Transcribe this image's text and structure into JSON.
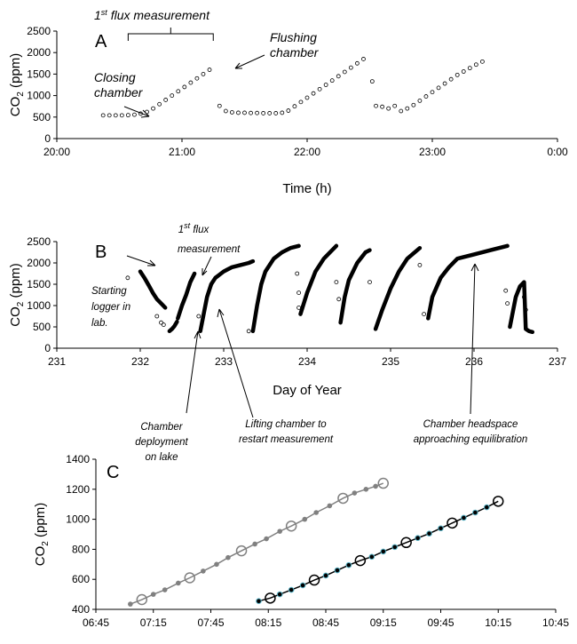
{
  "chart_data": [
    {
      "panel": "A",
      "type": "scatter",
      "xlabel": "Time (h)",
      "ylabel": "CO2 (ppm)",
      "xticks": [
        "20:00",
        "21:00",
        "22:00",
        "23:00",
        "0:00"
      ],
      "xlim": [
        20.0,
        24.0
      ],
      "ylim": [
        0,
        2500
      ],
      "yticks": [
        0,
        500,
        1000,
        1500,
        2000,
        2500
      ],
      "annotations": [
        {
          "text": "1st flux measurement",
          "sup": "st"
        },
        {
          "text": "Closing chamber"
        },
        {
          "text": "Flushing chamber"
        }
      ],
      "series": [
        {
          "x": [
            20.37,
            20.42,
            20.47,
            20.52,
            20.57,
            20.62,
            20.67,
            20.72,
            20.77,
            20.82,
            20.87,
            20.92,
            20.97,
            21.02,
            21.07,
            21.12,
            21.17,
            21.22,
            21.3,
            21.35,
            21.4,
            21.45,
            21.5,
            21.55,
            21.6,
            21.65,
            21.7,
            21.75,
            21.8,
            21.85,
            21.9,
            21.95,
            22.0,
            22.05,
            22.1,
            22.15,
            22.2,
            22.25,
            22.3,
            22.35,
            22.4,
            22.45,
            22.52,
            22.55,
            22.6,
            22.65,
            22.7,
            22.75,
            22.8,
            22.85,
            22.9,
            22.95,
            23.0,
            23.05,
            23.1,
            23.15,
            23.2,
            23.25,
            23.3,
            23.35,
            23.4
          ],
          "y": [
            540,
            540,
            540,
            540,
            545,
            555,
            580,
            620,
            700,
            800,
            900,
            1000,
            1100,
            1200,
            1300,
            1400,
            1500,
            1600,
            760,
            640,
            610,
            600,
            600,
            595,
            595,
            590,
            590,
            590,
            600,
            650,
            750,
            850,
            950,
            1050,
            1150,
            1250,
            1350,
            1450,
            1550,
            1650,
            1750,
            1850,
            1330,
            760,
            740,
            700,
            760,
            640,
            700,
            780,
            880,
            980,
            1080,
            1180,
            1280,
            1380,
            1480,
            1560,
            1640,
            1720,
            1790
          ]
        }
      ]
    },
    {
      "panel": "B",
      "type": "scatter",
      "xlabel": "Day of Year",
      "ylabel": "CO2 (ppm)",
      "xticks": [
        "231",
        "232",
        "233",
        "234",
        "235",
        "236",
        "237"
      ],
      "xlim": [
        231,
        237
      ],
      "ylim": [
        0,
        2500
      ],
      "yticks": [
        0,
        500,
        1000,
        1500,
        2000,
        2500
      ],
      "annotations": [
        {
          "text": "1st flux measurement",
          "sup": "st"
        },
        {
          "text": "Starting logger in lab."
        },
        {
          "text": "Chamber deployment on lake"
        },
        {
          "text": "Lifting chamber to restart measurement"
        },
        {
          "text": "Chamber headspace approaching equilibration"
        }
      ],
      "series": [
        {
          "segments": [
            {
              "x": [
                232.0,
                232.05,
                232.1,
                232.15,
                232.2,
                232.25,
                232.3
              ],
              "y": [
                1800,
                1650,
                1480,
                1300,
                1150,
                1050,
                950
              ]
            },
            {
              "x": [
                232.35,
                232.38,
                232.41,
                232.44
              ],
              "y": [
                400,
                450,
                520,
                620
              ]
            },
            {
              "x": [
                232.45,
                232.5,
                232.55,
                232.6,
                232.65
              ],
              "y": [
                700,
                1000,
                1250,
                1550,
                1750
              ]
            },
            {
              "x": [
                232.72,
                232.75,
                232.8,
                232.85,
                232.9,
                233.0,
                233.1,
                233.2,
                233.3,
                233.35
              ],
              "y": [
                400,
                700,
                1200,
                1500,
                1650,
                1800,
                1900,
                1950,
                2000,
                2040
              ]
            },
            {
              "x": [
                233.35,
                233.4,
                233.45,
                233.5,
                233.6,
                233.7,
                233.8,
                233.9
              ],
              "y": [
                400,
                1000,
                1500,
                1800,
                2100,
                2250,
                2350,
                2400
              ]
            },
            {
              "x": [
                233.92,
                234.0,
                234.1,
                234.2,
                234.3,
                234.35
              ],
              "y": [
                800,
                1300,
                1800,
                2100,
                2300,
                2400
              ]
            },
            {
              "x": [
                234.4,
                234.45,
                234.5,
                234.6,
                234.7,
                234.75
              ],
              "y": [
                600,
                1200,
                1600,
                2000,
                2250,
                2300
              ]
            },
            {
              "x": [
                234.82,
                234.9,
                235.0,
                235.1,
                235.2,
                235.35
              ],
              "y": [
                450,
                900,
                1400,
                1800,
                2100,
                2350
              ]
            },
            {
              "x": [
                235.45,
                235.5,
                235.6,
                235.7,
                235.8,
                236.0,
                236.2,
                236.4
              ],
              "y": [
                700,
                1200,
                1650,
                1900,
                2100,
                2200,
                2300,
                2400
              ]
            },
            {
              "x": [
                236.43,
                236.47,
                236.5,
                236.55,
                236.6,
                236.62,
                236.66,
                236.7
              ],
              "y": [
                500,
                900,
                1200,
                1450,
                1550,
                450,
                400,
                380
              ]
            }
          ],
          "points": [
            {
              "x": 231.85,
              "y": 1650
            },
            {
              "x": 232.2,
              "y": 750
            },
            {
              "x": 232.25,
              "y": 600
            },
            {
              "x": 232.28,
              "y": 550
            },
            {
              "x": 232.7,
              "y": 750
            },
            {
              "x": 233.3,
              "y": 400
            },
            {
              "x": 233.88,
              "y": 1750
            },
            {
              "x": 233.9,
              "y": 1300
            },
            {
              "x": 233.9,
              "y": 950
            },
            {
              "x": 234.35,
              "y": 1550
            },
            {
              "x": 234.38,
              "y": 1150
            },
            {
              "x": 234.75,
              "y": 1550
            },
            {
              "x": 235.35,
              "y": 1950
            },
            {
              "x": 235.4,
              "y": 800
            },
            {
              "x": 236.38,
              "y": 1350
            },
            {
              "x": 236.4,
              "y": 1050
            },
            {
              "x": 236.6,
              "y": 1200
            },
            {
              "x": 236.62,
              "y": 900
            }
          ]
        }
      ]
    },
    {
      "panel": "C",
      "type": "line",
      "xlabel": "",
      "ylabel": "CO2 (ppm)",
      "xticks": [
        "06:45",
        "07:15",
        "07:45",
        "08:15",
        "08:45",
        "09:15",
        "09:45",
        "10:15",
        "10:45"
      ],
      "xlim": [
        "06:45",
        "10:45"
      ],
      "ylim": [
        400,
        1400
      ],
      "yticks": [
        400,
        600,
        800,
        1000,
        1200,
        1400
      ],
      "series": [
        {
          "color": "#808080",
          "x": [
            "07:03",
            "07:09",
            "07:15",
            "07:21",
            "07:28",
            "07:34",
            "07:41",
            "07:48",
            "07:54",
            "08:01",
            "08:08",
            "08:14",
            "08:21",
            "08:27",
            "08:34",
            "08:40",
            "08:47",
            "08:54",
            "09:00",
            "09:06",
            "09:11",
            "09:15"
          ],
          "y": [
            435,
            465,
            500,
            530,
            575,
            610,
            655,
            700,
            745,
            790,
            835,
            870,
            920,
            955,
            1000,
            1045,
            1090,
            1140,
            1175,
            1200,
            1220,
            1240
          ]
        },
        {
          "color": "#000000",
          "x": [
            "08:10",
            "08:16",
            "08:21",
            "08:27",
            "08:33",
            "08:39",
            "08:45",
            "08:51",
            "08:57",
            "09:03",
            "09:09",
            "09:15",
            "09:21",
            "09:27",
            "09:33",
            "09:39",
            "09:45",
            "09:51",
            "09:57",
            "10:03",
            "10:09",
            "10:15"
          ],
          "y": [
            455,
            475,
            500,
            530,
            560,
            595,
            625,
            660,
            695,
            725,
            750,
            785,
            815,
            845,
            875,
            905,
            940,
            975,
            1010,
            1045,
            1080,
            1120
          ]
        }
      ]
    }
  ]
}
